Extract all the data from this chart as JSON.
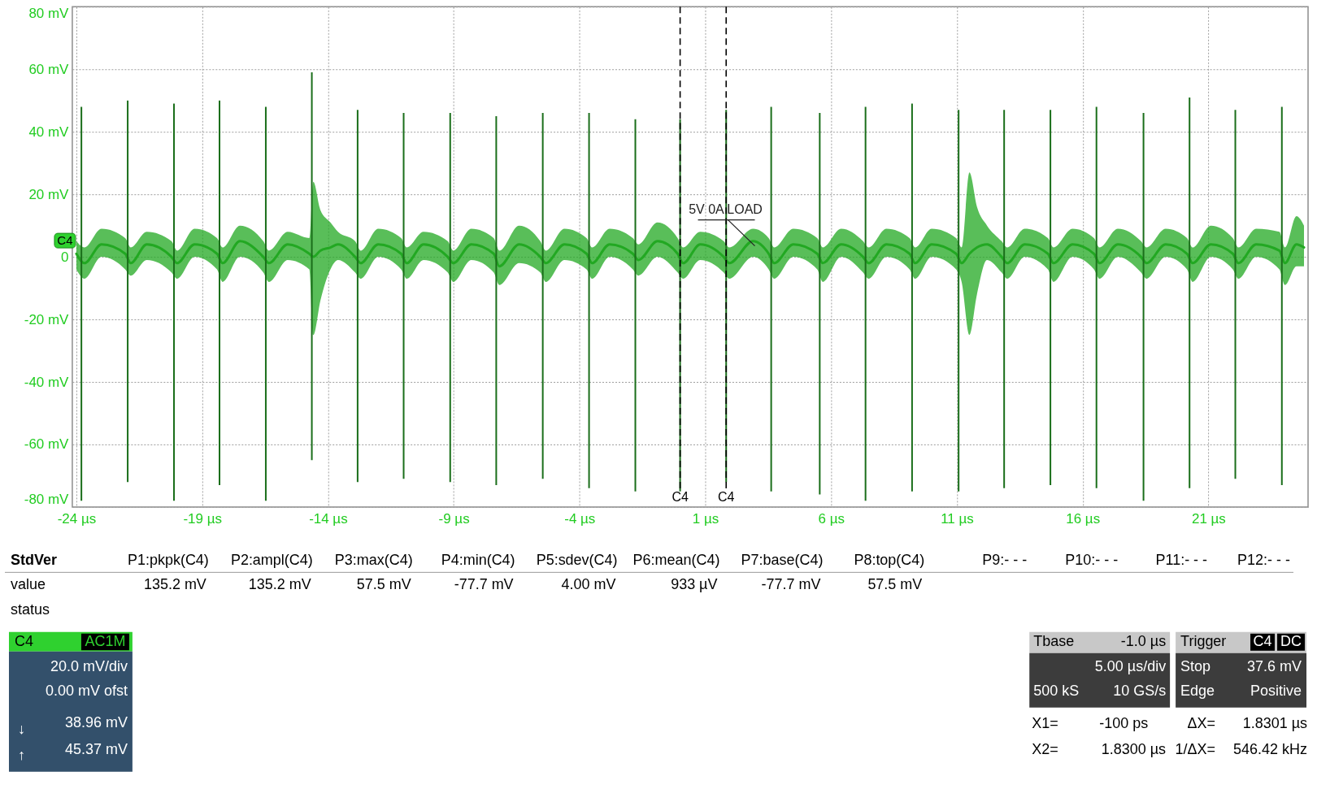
{
  "chart_data": {
    "type": "line",
    "xlim": [
      -24,
      24.8
    ],
    "ylim": [
      -80,
      80
    ],
    "xticks": [
      {
        "value": -24,
        "label": "-24 µs"
      },
      {
        "value": -19,
        "label": "-19 µs"
      },
      {
        "value": -14,
        "label": "-14 µs"
      },
      {
        "value": -9,
        "label": "-9 µs"
      },
      {
        "value": -4,
        "label": "-4 µs"
      },
      {
        "value": 1,
        "label": "1 µs"
      },
      {
        "value": 6,
        "label": "6 µs"
      },
      {
        "value": 11,
        "label": "11 µs"
      },
      {
        "value": 16,
        "label": "16 µs"
      },
      {
        "value": 21,
        "label": "21 µs"
      }
    ],
    "yticks": [
      {
        "value": 80,
        "label": "80 mV"
      },
      {
        "value": 60,
        "label": "60 mV"
      },
      {
        "value": 40,
        "label": "40 mV"
      },
      {
        "value": 20,
        "label": "20 mV"
      },
      0,
      {
        "value": -20,
        "label": "-20 mV"
      },
      {
        "value": -40,
        "label": "-40 mV"
      },
      {
        "value": -60,
        "label": "-60 mV"
      },
      {
        "value": -80,
        "label": "-80 mV"
      }
    ],
    "grid": true,
    "series": [
      {
        "color": "#22a822",
        "x": [
          -24.0,
          -23.68,
          -23.0,
          -22.06,
          -21.84,
          -21.2,
          -20.22,
          -20.0,
          -19.3,
          -18.41,
          -18.19,
          -17.5,
          -16.57,
          -16.35,
          -15.6,
          -14.74,
          -14.58,
          -14.3,
          -13.9,
          -13.6,
          -12.92,
          -12.7,
          -12.0,
          -11.09,
          -10.87,
          -10.2,
          -9.24,
          -9.02,
          -8.3,
          -7.41,
          -7.19,
          -6.4,
          -5.56,
          -5.34,
          -4.6,
          -3.72,
          -3.5,
          -2.8,
          -1.88,
          -1.66,
          -0.9,
          -0.1,
          0.12,
          0.8,
          1.73,
          1.95,
          2.9,
          3.52,
          3.74,
          4.5,
          5.45,
          5.67,
          6.4,
          7.27,
          7.49,
          8.2,
          9.12,
          9.34,
          10.0,
          10.97,
          11.19,
          11.5,
          11.8,
          12.2,
          12.78,
          13.0,
          13.7,
          14.62,
          14.84,
          15.6,
          16.45,
          16.67,
          17.4,
          18.32,
          18.54,
          19.3,
          20.15,
          20.37,
          21.1,
          21.97,
          22.19,
          22.9,
          23.82,
          24.04,
          24.5,
          24.8
        ],
        "values": [
          1,
          -2,
          4,
          1,
          -2,
          4,
          0,
          -2,
          4,
          1,
          -2,
          5,
          0,
          -2,
          4,
          1,
          0,
          2,
          3,
          4,
          0,
          -2,
          4,
          1,
          -2,
          4,
          0,
          -2,
          4,
          1,
          -3,
          4,
          0,
          -2,
          4,
          1,
          -2,
          4,
          1,
          -1,
          5,
          1,
          -2,
          4,
          0,
          -2,
          5,
          1,
          -2,
          4,
          1,
          -2,
          4,
          0,
          -2,
          4,
          1,
          -2,
          4,
          1,
          -2,
          1,
          3,
          4,
          0,
          -2,
          4,
          1,
          -2,
          4,
          1,
          -2,
          4,
          0,
          -2,
          4,
          1,
          -2,
          4,
          1,
          -2,
          4,
          2,
          -2,
          4,
          3
        ],
        "lower": [
          -4,
          -7,
          0,
          -4,
          -6,
          -1,
          -5,
          -7,
          0,
          -4,
          -8,
          0,
          -5,
          -8,
          -1,
          -4,
          -25,
          -14,
          -4,
          -1,
          -5,
          -7,
          0,
          -4,
          -7,
          -1,
          -5,
          -8,
          -1,
          -5,
          -9,
          -2,
          -5,
          -8,
          -1,
          -4,
          -7,
          0,
          -4,
          -6,
          0,
          -5,
          -7,
          -1,
          -5,
          -7,
          0,
          -4,
          -7,
          0,
          -4,
          -8,
          0,
          -5,
          -7,
          0,
          -4,
          -7,
          0,
          -4,
          -8,
          -25,
          -12,
          -1,
          -5,
          -7,
          0,
          -4,
          -8,
          0,
          -4,
          -7,
          0,
          -5,
          -7,
          0,
          -4,
          -8,
          0,
          -4,
          -7,
          0,
          -4,
          -9,
          -3,
          -3
        ],
        "upper": [
          5,
          3,
          9,
          6,
          3,
          8,
          5,
          2,
          9,
          6,
          3,
          10,
          5,
          2,
          8,
          6,
          24,
          15,
          11,
          8,
          5,
          2,
          9,
          6,
          3,
          8,
          5,
          2,
          9,
          6,
          2,
          10,
          5,
          2,
          9,
          6,
          3,
          9,
          6,
          4,
          11,
          6,
          3,
          8,
          5,
          3,
          9,
          6,
          3,
          9,
          6,
          3,
          9,
          5,
          3,
          9,
          6,
          3,
          9,
          6,
          3,
          27,
          16,
          10,
          5,
          3,
          9,
          6,
          3,
          9,
          6,
          3,
          9,
          5,
          3,
          9,
          6,
          3,
          10,
          6,
          3,
          9,
          8,
          3,
          13,
          10
        ]
      },
      {
        "type": "bar",
        "color": "#1a6e1a",
        "x": [
          -23.8,
          -21.96,
          -20.12,
          -18.31,
          -16.47,
          -14.64,
          -12.82,
          -10.99,
          -9.14,
          -7.31,
          -5.46,
          -3.62,
          -1.78,
          0.0,
          1.83,
          3.62,
          5.55,
          7.37,
          9.22,
          11.07,
          12.88,
          14.72,
          16.55,
          18.42,
          20.25,
          22.07,
          23.92
        ],
        "base": [
          -78,
          -72,
          -78,
          -73,
          -78,
          -65,
          -72,
          -71,
          -72,
          -73,
          -71,
          -74,
          -75,
          -75,
          -72,
          -75,
          -76,
          -78,
          -75,
          -75,
          -74,
          -73,
          -74,
          -78,
          -74,
          -71,
          -73
        ],
        "values": [
          126,
          122,
          127,
          123,
          126,
          124,
          119,
          117,
          118,
          118,
          117,
          120,
          119,
          119,
          119,
          123,
          122,
          126,
          124,
          122,
          121,
          120,
          122,
          124,
          125,
          118,
          121
        ]
      }
    ],
    "ref_lines": [
      {
        "axis": "x",
        "value": -0.0001,
        "label": "C4",
        "color": "#000000",
        "line_style": "dashed"
      },
      {
        "axis": "x",
        "value": 1.83,
        "label": "C4",
        "color": "#000000",
        "line_style": "dashed"
      }
    ],
    "annotations": [
      {
        "text": "5V 0A LOAD",
        "x": 2.97,
        "y": 3.5
      },
      {
        "text": "C4",
        "x": -24,
        "y": 0
      },
      "StdVer",
      "P1:pkpk(C4)",
      "P2:ampl(C4)",
      "P3:max(C4)",
      "P4:min(C4)",
      "P5:sdev(C4)",
      "P6:mean(C4)",
      "P7:base(C4)",
      "P8:top(C4)",
      "P9:- - -",
      "P10:- - -",
      "P11:- - -",
      "P12:- - -",
      "value",
      "135.2 mV",
      "135.2 mV",
      "57.5 mV",
      "-77.7 mV",
      "4.00 mV",
      "933 µV",
      "-77.7 mV",
      "57.5 mV",
      "status",
      "C4",
      "AC1M",
      "20.0 mV/div",
      "0.00 mV ofst",
      "↓",
      "38.96 mV",
      "↑",
      "45.37 mV",
      "Tbase",
      "-1.0 µs",
      "5.00 µs/div",
      "500 kS",
      "10 GS/s",
      "Trigger",
      "C4",
      "DC",
      "Stop",
      "37.6 mV",
      "Edge",
      "Positive",
      "X1=",
      "-100 ps",
      "ΔX=",
      "1.8301 µs",
      "X2=",
      "1.8300 µs",
      "1/ΔX=",
      "546.42 kHz"
    ]
  }
}
